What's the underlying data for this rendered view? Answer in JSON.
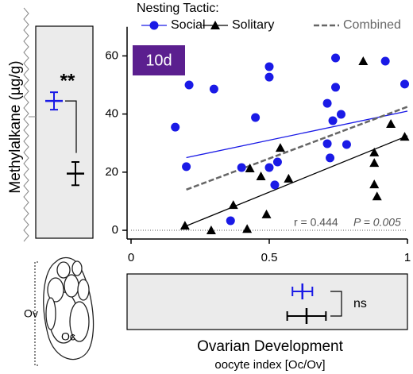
{
  "chart_data": {
    "type": "scatter",
    "legend_title": "Nesting Tactic:",
    "panel_label": "10d",
    "y_label": "Methylalkane (µg/g)",
    "x_label": "Ovarian Development",
    "x_sublabel": "oocyte index [Oc/Ov]",
    "stats": {
      "r": "r = 0.444",
      "p": "P = 0.005"
    },
    "xlim": [
      0,
      1
    ],
    "ylim": [
      -3,
      70
    ],
    "xticks": [
      0,
      0.5,
      1
    ],
    "yticks": [
      0,
      20,
      40,
      60
    ],
    "grid": false,
    "series": [
      {
        "name": "Social",
        "color": "#1a1ae6",
        "marker": "circle",
        "x": [
          0.2,
          0.16,
          0.21,
          0.3,
          0.36,
          0.4,
          0.45,
          0.5,
          0.5,
          0.5,
          0.52,
          0.53,
          0.71,
          0.72,
          0.71,
          0.73,
          0.76,
          0.74,
          0.74,
          0.78,
          0.92,
          0.99
        ],
        "values": [
          21.9,
          35.5,
          50.0,
          48.6,
          3.3,
          21.6,
          38.8,
          52.7,
          56.3,
          21.6,
          15.6,
          23.5,
          29.8,
          24.9,
          43.7,
          37.7,
          39.9,
          49.2,
          59.3,
          29.5,
          58.2,
          50.3
        ],
        "trend": {
          "x": [
            0.2,
            1
          ],
          "values": [
            25,
            41
          ]
        }
      },
      {
        "name": "Solitary",
        "color": "#000000",
        "marker": "triangle",
        "x": [
          0.195,
          0.29,
          0.37,
          0.43,
          0.42,
          0.47,
          0.49,
          0.54,
          0.57,
          0.84,
          0.88,
          0.88,
          0.88,
          0.89,
          0.94,
          0.99
        ],
        "values": [
          1.6,
          0,
          8.7,
          21.3,
          0.5,
          18.6,
          5.5,
          28.4,
          17.8,
          58.2,
          26.8,
          23.2,
          15.8,
          11.7,
          36.6,
          32.2
        ],
        "trend": {
          "x": [
            0.2,
            1
          ],
          "values": [
            1.5,
            32.5
          ]
        }
      },
      {
        "name": "Combined",
        "color": "#666666",
        "marker": "none",
        "dashed": true,
        "trend": {
          "x": [
            0.2,
            1
          ],
          "values": [
            14,
            42.5
          ]
        }
      }
    ],
    "inset_y": {
      "means": [
        44.5,
        19.5
      ],
      "errors": [
        3,
        4
      ],
      "significance": "**"
    },
    "inset_x": {
      "means": [
        0.62,
        0.635
      ],
      "errors": [
        0.036,
        0.07
      ],
      "significance": "ns"
    },
    "diagram": {
      "outer": "Ov",
      "inner": "Oc"
    }
  }
}
